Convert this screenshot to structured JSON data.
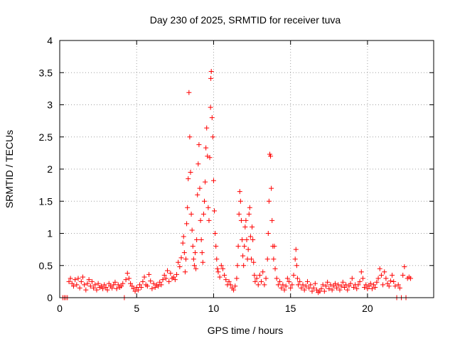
{
  "chart_data": {
    "type": "scatter",
    "title": "Day 230 of 2025, SRMTID for receiver tuva",
    "xlabel": "GPS time / hours",
    "ylabel": "SRMTID / TECUs",
    "xlim": [
      0,
      24.3
    ],
    "ylim": [
      0,
      4
    ],
    "xticks": [
      0,
      5,
      10,
      15,
      20
    ],
    "yticks": [
      0,
      0.5,
      1,
      1.5,
      2,
      2.5,
      3,
      3.5,
      4
    ],
    "xtick_labels": [
      "0",
      "5",
      "10",
      "15",
      "20"
    ],
    "ytick_labels": [
      "0",
      "0.5",
      "1",
      "1.5",
      "2",
      "2.5",
      "3",
      "3.5",
      "4"
    ],
    "grid": true,
    "marker": "+",
    "color": "#ff0000",
    "series": [
      {
        "name": "SRMTID",
        "points": [
          [
            0.2,
            0.0
          ],
          [
            0.3,
            0.0
          ],
          [
            0.4,
            0.0
          ],
          [
            0.5,
            0.0
          ],
          [
            0.6,
            0.25
          ],
          [
            0.7,
            0.3
          ],
          [
            0.8,
            0.22
          ],
          [
            0.9,
            0.18
          ],
          [
            1.0,
            0.28
          ],
          [
            1.1,
            0.2
          ],
          [
            1.2,
            0.3
          ],
          [
            1.3,
            0.15
          ],
          [
            1.4,
            0.25
          ],
          [
            1.5,
            0.32
          ],
          [
            1.6,
            0.2
          ],
          [
            1.7,
            0.12
          ],
          [
            1.8,
            0.22
          ],
          [
            1.9,
            0.28
          ],
          [
            2.0,
            0.18
          ],
          [
            2.1,
            0.25
          ],
          [
            2.2,
            0.15
          ],
          [
            2.3,
            0.2
          ],
          [
            2.4,
            0.12
          ],
          [
            2.5,
            0.22
          ],
          [
            2.6,
            0.16
          ],
          [
            2.7,
            0.18
          ],
          [
            2.8,
            0.14
          ],
          [
            2.9,
            0.2
          ],
          [
            3.0,
            0.16
          ],
          [
            3.1,
            0.12
          ],
          [
            3.2,
            0.22
          ],
          [
            3.3,
            0.18
          ],
          [
            3.4,
            0.15
          ],
          [
            3.5,
            0.2
          ],
          [
            3.6,
            0.24
          ],
          [
            3.7,
            0.14
          ],
          [
            3.8,
            0.2
          ],
          [
            3.9,
            0.16
          ],
          [
            4.0,
            0.18
          ],
          [
            4.1,
            0.22
          ],
          [
            4.2,
            0.0
          ],
          [
            4.3,
            0.28
          ],
          [
            4.4,
            0.38
          ],
          [
            4.5,
            0.3
          ],
          [
            4.6,
            0.22
          ],
          [
            4.7,
            0.18
          ],
          [
            4.8,
            0.14
          ],
          [
            4.9,
            0.1
          ],
          [
            5.0,
            0.16
          ],
          [
            5.1,
            0.12
          ],
          [
            5.2,
            0.2
          ],
          [
            5.3,
            0.16
          ],
          [
            5.4,
            0.25
          ],
          [
            5.5,
            0.32
          ],
          [
            5.6,
            0.2
          ],
          [
            5.7,
            0.18
          ],
          [
            5.8,
            0.36
          ],
          [
            5.9,
            0.26
          ],
          [
            6.0,
            0.14
          ],
          [
            6.1,
            0.22
          ],
          [
            6.2,
            0.16
          ],
          [
            6.3,
            0.2
          ],
          [
            6.4,
            0.18
          ],
          [
            6.5,
            0.24
          ],
          [
            6.6,
            0.2
          ],
          [
            6.7,
            0.28
          ],
          [
            6.8,
            0.35
          ],
          [
            6.9,
            0.3
          ],
          [
            7.0,
            0.42
          ],
          [
            7.1,
            0.25
          ],
          [
            7.2,
            0.38
          ],
          [
            7.3,
            0.3
          ],
          [
            7.4,
            0.32
          ],
          [
            7.5,
            0.28
          ],
          [
            7.6,
            0.36
          ],
          [
            7.7,
            0.55
          ],
          [
            7.8,
            0.48
          ],
          [
            7.9,
            0.62
          ],
          [
            8.0,
            0.85
          ],
          [
            8.05,
            0.95
          ],
          [
            8.1,
            0.7
          ],
          [
            8.15,
            0.4
          ],
          [
            8.2,
            0.6
          ],
          [
            8.25,
            1.15
          ],
          [
            8.3,
            1.4
          ],
          [
            8.35,
            1.85
          ],
          [
            8.4,
            3.19
          ],
          [
            8.45,
            2.5
          ],
          [
            8.5,
            1.95
          ],
          [
            8.55,
            1.3
          ],
          [
            8.6,
            1.05
          ],
          [
            8.65,
            0.8
          ],
          [
            8.7,
            0.6
          ],
          [
            8.75,
            0.5
          ],
          [
            8.8,
            0.7
          ],
          [
            8.85,
            0.45
          ],
          [
            8.9,
            0.9
          ],
          [
            8.95,
            1.6
          ],
          [
            9.0,
            2.08
          ],
          [
            9.05,
            2.38
          ],
          [
            9.1,
            1.7
          ],
          [
            9.15,
            1.2
          ],
          [
            9.2,
            0.9
          ],
          [
            9.25,
            0.7
          ],
          [
            9.3,
            0.55
          ],
          [
            9.35,
            1.3
          ],
          [
            9.4,
            1.5
          ],
          [
            9.45,
            1.8
          ],
          [
            9.5,
            2.33
          ],
          [
            9.55,
            2.64
          ],
          [
            9.6,
            2.2
          ],
          [
            9.65,
            1.4
          ],
          [
            9.7,
            1.2
          ],
          [
            9.75,
            2.18
          ],
          [
            9.8,
            2.96
          ],
          [
            9.82,
            3.41
          ],
          [
            9.85,
            3.52
          ],
          [
            9.9,
            2.8
          ],
          [
            9.95,
            2.5
          ],
          [
            10.0,
            1.82
          ],
          [
            10.05,
            1.35
          ],
          [
            10.1,
            1.0
          ],
          [
            10.15,
            0.8
          ],
          [
            10.2,
            0.6
          ],
          [
            10.25,
            0.45
          ],
          [
            10.3,
            0.4
          ],
          [
            10.4,
            0.32
          ],
          [
            10.5,
            0.5
          ],
          [
            10.6,
            0.45
          ],
          [
            10.7,
            0.35
          ],
          [
            10.8,
            0.28
          ],
          [
            10.9,
            0.2
          ],
          [
            11.0,
            0.25
          ],
          [
            11.1,
            0.2
          ],
          [
            11.2,
            0.15
          ],
          [
            11.3,
            0.12
          ],
          [
            11.4,
            0.18
          ],
          [
            11.5,
            0.3
          ],
          [
            11.55,
            0.5
          ],
          [
            11.6,
            0.8
          ],
          [
            11.65,
            1.3
          ],
          [
            11.7,
            1.65
          ],
          [
            11.75,
            1.5
          ],
          [
            11.8,
            1.2
          ],
          [
            11.85,
            0.9
          ],
          [
            11.9,
            0.65
          ],
          [
            11.95,
            0.5
          ],
          [
            12.0,
            0.8
          ],
          [
            12.05,
            1.1
          ],
          [
            12.1,
            1.2
          ],
          [
            12.15,
            0.9
          ],
          [
            12.2,
            0.6
          ],
          [
            12.25,
            0.75
          ],
          [
            12.3,
            1.3
          ],
          [
            12.35,
            1.4
          ],
          [
            12.4,
            0.95
          ],
          [
            12.45,
            0.6
          ],
          [
            12.5,
            1.1
          ],
          [
            12.55,
            0.9
          ],
          [
            12.6,
            0.55
          ],
          [
            12.65,
            0.35
          ],
          [
            12.7,
            0.25
          ],
          [
            12.8,
            0.3
          ],
          [
            12.9,
            0.2
          ],
          [
            13.0,
            0.35
          ],
          [
            13.1,
            0.25
          ],
          [
            13.2,
            0.4
          ],
          [
            13.3,
            0.2
          ],
          [
            13.4,
            0.3
          ],
          [
            13.5,
            0.6
          ],
          [
            13.55,
            1.0
          ],
          [
            13.6,
            1.5
          ],
          [
            13.65,
            2.23
          ],
          [
            13.7,
            2.2
          ],
          [
            13.75,
            1.7
          ],
          [
            13.8,
            1.2
          ],
          [
            13.85,
            0.8
          ],
          [
            13.9,
            0.6
          ],
          [
            13.95,
            0.8
          ],
          [
            14.0,
            0.45
          ],
          [
            14.1,
            0.3
          ],
          [
            14.2,
            0.2
          ],
          [
            14.3,
            0.25
          ],
          [
            14.4,
            0.15
          ],
          [
            14.5,
            0.2
          ],
          [
            14.6,
            0.12
          ],
          [
            14.7,
            0.18
          ],
          [
            14.8,
            0.3
          ],
          [
            14.9,
            0.25
          ],
          [
            15.0,
            0.15
          ],
          [
            15.1,
            0.2
          ],
          [
            15.2,
            0.35
          ],
          [
            15.3,
            0.6
          ],
          [
            15.35,
            0.75
          ],
          [
            15.4,
            0.5
          ],
          [
            15.45,
            0.3
          ],
          [
            15.5,
            0.2
          ],
          [
            15.6,
            0.25
          ],
          [
            15.7,
            0.15
          ],
          [
            15.8,
            0.2
          ],
          [
            15.9,
            0.12
          ],
          [
            16.0,
            0.18
          ],
          [
            16.1,
            0.25
          ],
          [
            16.2,
            0.15
          ],
          [
            16.3,
            0.2
          ],
          [
            16.4,
            0.1
          ],
          [
            16.5,
            0.15
          ],
          [
            16.6,
            0.22
          ],
          [
            16.7,
            0.12
          ],
          [
            16.8,
            0.08
          ],
          [
            16.9,
            0.1
          ],
          [
            17.0,
            0.14
          ],
          [
            17.1,
            0.2
          ],
          [
            17.2,
            0.1
          ],
          [
            17.3,
            0.18
          ],
          [
            17.4,
            0.24
          ],
          [
            17.5,
            0.14
          ],
          [
            17.6,
            0.2
          ],
          [
            17.7,
            0.12
          ],
          [
            17.8,
            0.18
          ],
          [
            17.9,
            0.22
          ],
          [
            18.0,
            0.15
          ],
          [
            18.1,
            0.2
          ],
          [
            18.2,
            0.12
          ],
          [
            18.3,
            0.18
          ],
          [
            18.4,
            0.24
          ],
          [
            18.5,
            0.16
          ],
          [
            18.6,
            0.2
          ],
          [
            18.7,
            0.12
          ],
          [
            18.8,
            0.18
          ],
          [
            18.9,
            0.22
          ],
          [
            19.0,
            0.3
          ],
          [
            19.1,
            0.16
          ],
          [
            19.2,
            0.2
          ],
          [
            19.3,
            0.14
          ],
          [
            19.4,
            0.2
          ],
          [
            19.5,
            0.25
          ],
          [
            19.6,
            0.4
          ],
          [
            19.7,
            0.3
          ],
          [
            19.8,
            0.16
          ],
          [
            19.9,
            0.2
          ],
          [
            20.0,
            0.14
          ],
          [
            20.1,
            0.18
          ],
          [
            20.2,
            0.22
          ],
          [
            20.3,
            0.14
          ],
          [
            20.4,
            0.2
          ],
          [
            20.5,
            0.16
          ],
          [
            20.6,
            0.24
          ],
          [
            20.7,
            0.3
          ],
          [
            20.8,
            0.45
          ],
          [
            20.9,
            0.35
          ],
          [
            21.0,
            0.2
          ],
          [
            21.1,
            0.4
          ],
          [
            21.2,
            0.3
          ],
          [
            21.3,
            0.22
          ],
          [
            21.4,
            0.18
          ],
          [
            21.5,
            0.26
          ],
          [
            21.6,
            0.35
          ],
          [
            21.7,
            0.25
          ],
          [
            21.8,
            0.18
          ],
          [
            21.9,
            0.0
          ],
          [
            22.0,
            0.2
          ],
          [
            22.1,
            0.15
          ],
          [
            22.2,
            0.0
          ],
          [
            22.3,
            0.35
          ],
          [
            22.4,
            0.48
          ],
          [
            22.5,
            0.0
          ],
          [
            22.6,
            0.3
          ],
          [
            22.7,
            0.32
          ],
          [
            22.8,
            0.3
          ]
        ]
      }
    ]
  }
}
